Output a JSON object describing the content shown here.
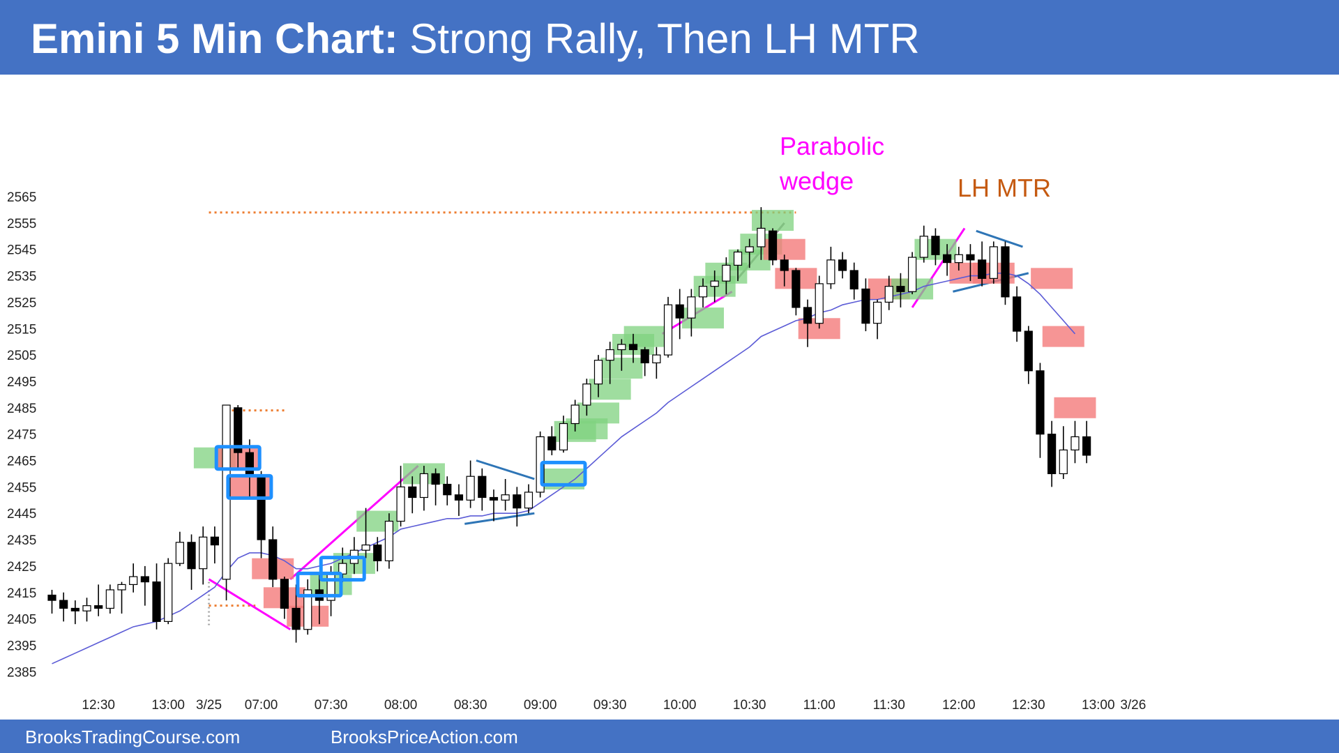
{
  "header": {
    "title_bold": "Emini 5 Min Chart:",
    "title_rest": " Strong Rally, Then LH MTR"
  },
  "footer": {
    "link1": "BrooksTradingCourse.com",
    "link2": "BrooksPriceAction.com"
  },
  "annotations": {
    "parabolic_line1": "Parabolic",
    "parabolic_line2": "wedge",
    "lh_mtr": "LH MTR"
  },
  "colors": {
    "header_bg": "#4472c4",
    "bull_highlight": "#7fd27f",
    "bear_highlight": "#f47a7a",
    "box_outline": "#1e90ff",
    "ema": "#5b5bd6",
    "magenta": "#ff00ff",
    "brown": "#c55a11",
    "orange_dotted": "#ed7d31",
    "trend_line": "#2e75b6"
  },
  "chart_data": {
    "type": "candlestick",
    "title": "",
    "xlabel": "",
    "ylabel": "",
    "ylim": [
      2382,
      2572
    ],
    "y_ticks": [
      2385,
      2395,
      2405,
      2415,
      2425,
      2435,
      2445,
      2455,
      2465,
      2475,
      2485,
      2495,
      2505,
      2515,
      2525,
      2535,
      2545,
      2555,
      2565
    ],
    "x_tick_labels": [
      {
        "label": "12:30",
        "bar": 4
      },
      {
        "label": "13:00",
        "bar": 10
      },
      {
        "label": "3/25",
        "bar": 13.5
      },
      {
        "label": "07:00",
        "bar": 18
      },
      {
        "label": "07:30",
        "bar": 24
      },
      {
        "label": "08:00",
        "bar": 30
      },
      {
        "label": "08:30",
        "bar": 36
      },
      {
        "label": "09:00",
        "bar": 42
      },
      {
        "label": "09:30",
        "bar": 48
      },
      {
        "label": "10:00",
        "bar": 54
      },
      {
        "label": "10:30",
        "bar": 60
      },
      {
        "label": "11:00",
        "bar": 66
      },
      {
        "label": "11:30",
        "bar": 72
      },
      {
        "label": "12:00",
        "bar": 78
      },
      {
        "label": "12:30",
        "bar": 84
      },
      {
        "label": "13:00",
        "bar": 90
      },
      {
        "label": "3/26",
        "bar": 93
      }
    ],
    "candles": [
      [
        2414,
        2416,
        2407,
        2412
      ],
      [
        2412,
        2415,
        2404,
        2409
      ],
      [
        2409,
        2412,
        2403,
        2408
      ],
      [
        2408,
        2413,
        2404,
        2410
      ],
      [
        2410,
        2418,
        2406,
        2409
      ],
      [
        2409,
        2418,
        2407,
        2416
      ],
      [
        2416,
        2419,
        2407,
        2418
      ],
      [
        2418,
        2426,
        2415,
        2421
      ],
      [
        2421,
        2425,
        2410,
        2419
      ],
      [
        2419,
        2426,
        2401,
        2404
      ],
      [
        2404,
        2428,
        2403,
        2426
      ],
      [
        2426,
        2438,
        2425,
        2434
      ],
      [
        2434,
        2437,
        2416,
        2424
      ],
      [
        2424,
        2440,
        2418,
        2436
      ],
      [
        2436,
        2440,
        2426,
        2433
      ],
      [
        2420,
        2486,
        2412,
        2486
      ],
      [
        2485,
        2486,
        2462,
        2468
      ],
      [
        2468,
        2473,
        2451,
        2460
      ],
      [
        2459,
        2461,
        2428,
        2435
      ],
      [
        2435,
        2440,
        2417,
        2420
      ],
      [
        2420,
        2421,
        2405,
        2409
      ],
      [
        2409,
        2418,
        2396,
        2401
      ],
      [
        2401,
        2420,
        2399,
        2416
      ],
      [
        2416,
        2422,
        2403,
        2412
      ],
      [
        2412,
        2425,
        2406,
        2422
      ],
      [
        2422,
        2432,
        2419,
        2426
      ],
      [
        2426,
        2436,
        2422,
        2431
      ],
      [
        2431,
        2447,
        2428,
        2433
      ],
      [
        2433,
        2436,
        2423,
        2427
      ],
      [
        2427,
        2445,
        2424,
        2442
      ],
      [
        2442,
        2463,
        2440,
        2455
      ],
      [
        2455,
        2459,
        2445,
        2451
      ],
      [
        2451,
        2463,
        2446,
        2460
      ],
      [
        2460,
        2462,
        2448,
        2456
      ],
      [
        2456,
        2459,
        2448,
        2452
      ],
      [
        2452,
        2456,
        2444,
        2450
      ],
      [
        2450,
        2465,
        2447,
        2459
      ],
      [
        2459,
        2462,
        2446,
        2451
      ],
      [
        2451,
        2454,
        2442,
        2450
      ],
      [
        2450,
        2458,
        2446,
        2452
      ],
      [
        2452,
        2455,
        2440,
        2447
      ],
      [
        2447,
        2456,
        2445,
        2453
      ],
      [
        2453,
        2476,
        2451,
        2474
      ],
      [
        2474,
        2478,
        2467,
        2469
      ],
      [
        2469,
        2482,
        2468,
        2479
      ],
      [
        2479,
        2488,
        2476,
        2486
      ],
      [
        2486,
        2496,
        2482,
        2494
      ],
      [
        2494,
        2505,
        2489,
        2503
      ],
      [
        2503,
        2510,
        2494,
        2507
      ],
      [
        2507,
        2511,
        2499,
        2509
      ],
      [
        2509,
        2513,
        2502,
        2507
      ],
      [
        2507,
        2508,
        2497,
        2502
      ],
      [
        2502,
        2508,
        2496,
        2505
      ],
      [
        2505,
        2527,
        2504,
        2524
      ],
      [
        2524,
        2530,
        2511,
        2519
      ],
      [
        2519,
        2530,
        2512,
        2527
      ],
      [
        2527,
        2534,
        2523,
        2531
      ],
      [
        2531,
        2537,
        2525,
        2533
      ],
      [
        2533,
        2542,
        2528,
        2539
      ],
      [
        2539,
        2545,
        2533,
        2544
      ],
      [
        2544,
        2549,
        2538,
        2546
      ],
      [
        2546,
        2561,
        2541,
        2553
      ],
      [
        2552,
        2553,
        2539,
        2541
      ],
      [
        2541,
        2543,
        2531,
        2537
      ],
      [
        2537,
        2538,
        2520,
        2523
      ],
      [
        2523,
        2526,
        2508,
        2517
      ],
      [
        2517,
        2535,
        2515,
        2532
      ],
      [
        2532,
        2546,
        2530,
        2541
      ],
      [
        2541,
        2544,
        2534,
        2537
      ],
      [
        2537,
        2540,
        2526,
        2530
      ],
      [
        2530,
        2534,
        2514,
        2517
      ],
      [
        2517,
        2526,
        2511,
        2525
      ],
      [
        2525,
        2535,
        2522,
        2531
      ],
      [
        2531,
        2536,
        2523,
        2529
      ],
      [
        2529,
        2544,
        2528,
        2542
      ],
      [
        2542,
        2554,
        2540,
        2550
      ],
      [
        2550,
        2553,
        2539,
        2543
      ],
      [
        2543,
        2547,
        2535,
        2540
      ],
      [
        2540,
        2546,
        2537,
        2543
      ],
      [
        2543,
        2547,
        2533,
        2541
      ],
      [
        2541,
        2548,
        2531,
        2534
      ],
      [
        2534,
        2548,
        2532,
        2546
      ],
      [
        2546,
        2548,
        2524,
        2527
      ],
      [
        2527,
        2531,
        2510,
        2514
      ],
      [
        2514,
        2516,
        2494,
        2499
      ],
      [
        2499,
        2502,
        2466,
        2475
      ],
      [
        2475,
        2480,
        2455,
        2460
      ],
      [
        2460,
        2478,
        2458,
        2469
      ],
      [
        2469,
        2480,
        2464,
        2474
      ],
      [
        2474,
        2480,
        2464,
        2467
      ]
    ],
    "ema20": [
      2388,
      2390,
      2392,
      2394,
      2396,
      2398,
      2400,
      2402,
      2403,
      2404,
      2406,
      2408,
      2411,
      2414,
      2417,
      2423,
      2428,
      2430,
      2430,
      2429,
      2427,
      2424,
      2424,
      2425,
      2426,
      2428,
      2430,
      2432,
      2434,
      2436,
      2439,
      2440,
      2441,
      2442,
      2443,
      2443,
      2444,
      2444,
      2445,
      2445,
      2445,
      2446,
      2449,
      2452,
      2455,
      2458,
      2462,
      2466,
      2470,
      2474,
      2477,
      2480,
      2483,
      2487,
      2490,
      2493,
      2496,
      2499,
      2502,
      2505,
      2508,
      2512,
      2514,
      2516,
      2518,
      2519,
      2521,
      2522,
      2524,
      2525,
      2526,
      2526,
      2527,
      2528,
      2529,
      2531,
      2532,
      2533,
      2534,
      2535,
      2535,
      2536,
      2536,
      2535,
      2532,
      2528,
      2523,
      2518,
      2513
    ],
    "highlight_boxes": [
      {
        "bar": 14,
        "center": 2466,
        "kind": "bull"
      },
      {
        "bar": 16,
        "center": 2466,
        "kind": "bear"
      },
      {
        "bar": 17,
        "center": 2455,
        "kind": "bear"
      },
      {
        "bar": 19,
        "center": 2424,
        "kind": "bear"
      },
      {
        "bar": 20,
        "center": 2413,
        "kind": "bear"
      },
      {
        "bar": 22,
        "center": 2406,
        "kind": "bear"
      },
      {
        "bar": 24,
        "center": 2418,
        "kind": "bull"
      },
      {
        "bar": 26,
        "center": 2426,
        "kind": "bull"
      },
      {
        "bar": 28,
        "center": 2442,
        "kind": "bull"
      },
      {
        "bar": 32,
        "center": 2460,
        "kind": "bull"
      },
      {
        "bar": 44,
        "center": 2458,
        "kind": "bull"
      },
      {
        "bar": 45,
        "center": 2476,
        "kind": "bull"
      },
      {
        "bar": 46,
        "center": 2477,
        "kind": "bull"
      },
      {
        "bar": 47,
        "center": 2483,
        "kind": "bull"
      },
      {
        "bar": 48,
        "center": 2492,
        "kind": "bull"
      },
      {
        "bar": 49,
        "center": 2500,
        "kind": "bull"
      },
      {
        "bar": 50,
        "center": 2509,
        "kind": "bull"
      },
      {
        "bar": 51,
        "center": 2512,
        "kind": "bull"
      },
      {
        "bar": 56,
        "center": 2519,
        "kind": "bull"
      },
      {
        "bar": 57,
        "center": 2531,
        "kind": "bull"
      },
      {
        "bar": 58,
        "center": 2536,
        "kind": "bull"
      },
      {
        "bar": 60,
        "center": 2541,
        "kind": "bull"
      },
      {
        "bar": 61,
        "center": 2547,
        "kind": "bull"
      },
      {
        "bar": 62,
        "center": 2556,
        "kind": "bull"
      },
      {
        "bar": 63,
        "center": 2545,
        "kind": "bear"
      },
      {
        "bar": 64,
        "center": 2534,
        "kind": "bear"
      },
      {
        "bar": 66,
        "center": 2515,
        "kind": "bear"
      },
      {
        "bar": 72,
        "center": 2530,
        "kind": "bear"
      },
      {
        "bar": 74,
        "center": 2530,
        "kind": "bull"
      },
      {
        "bar": 76,
        "center": 2545,
        "kind": "bull"
      },
      {
        "bar": 79,
        "center": 2536,
        "kind": "bear"
      },
      {
        "bar": 81,
        "center": 2536,
        "kind": "bear"
      },
      {
        "bar": 86,
        "center": 2534,
        "kind": "bear"
      },
      {
        "bar": 87,
        "center": 2512,
        "kind": "bear"
      },
      {
        "bar": 88,
        "center": 2485,
        "kind": "bear"
      }
    ],
    "blue_boxes": [
      {
        "bar": 16,
        "center": 2466
      },
      {
        "bar": 17,
        "center": 2455
      },
      {
        "bar": 23,
        "center": 2418
      },
      {
        "bar": 25,
        "center": 2424
      },
      {
        "bar": 44,
        "center": 2460
      }
    ],
    "lines": [
      {
        "kind": "orange_dotted",
        "from": [
          13.5,
          2559
        ],
        "to": [
          64,
          2559
        ]
      },
      {
        "kind": "orange_dotted",
        "from": [
          15,
          2484
        ],
        "to": [
          20,
          2484
        ]
      },
      {
        "kind": "orange_dotted",
        "from": [
          13.5,
          2410
        ],
        "to": [
          17.5,
          2410
        ]
      },
      {
        "kind": "gray_dotted",
        "from": [
          13.5,
          2419
        ],
        "to": [
          13.5,
          2402
        ]
      },
      {
        "kind": "magenta",
        "from": [
          13.5,
          2420
        ],
        "to": [
          20.5,
          2401
        ]
      },
      {
        "kind": "magenta",
        "from": [
          20.5,
          2420
        ],
        "to": [
          31.5,
          2463
        ]
      },
      {
        "kind": "magenta",
        "from": [
          52.5,
          2513
        ],
        "to": [
          58.5,
          2529
        ]
      },
      {
        "kind": "gray",
        "from": [
          59,
          2534
        ],
        "to": [
          63,
          2555
        ]
      },
      {
        "kind": "magenta",
        "from": [
          74,
          2523
        ],
        "to": [
          78.5,
          2553
        ]
      },
      {
        "kind": "trend",
        "from": [
          36.5,
          2465
        ],
        "to": [
          41.5,
          2458
        ]
      },
      {
        "kind": "trend",
        "from": [
          35.5,
          2441
        ],
        "to": [
          41.5,
          2445
        ]
      },
      {
        "kind": "trend",
        "from": [
          79.5,
          2552
        ],
        "to": [
          83.5,
          2546
        ]
      },
      {
        "kind": "trend",
        "from": [
          77.5,
          2529
        ],
        "to": [
          84,
          2536
        ]
      }
    ]
  }
}
